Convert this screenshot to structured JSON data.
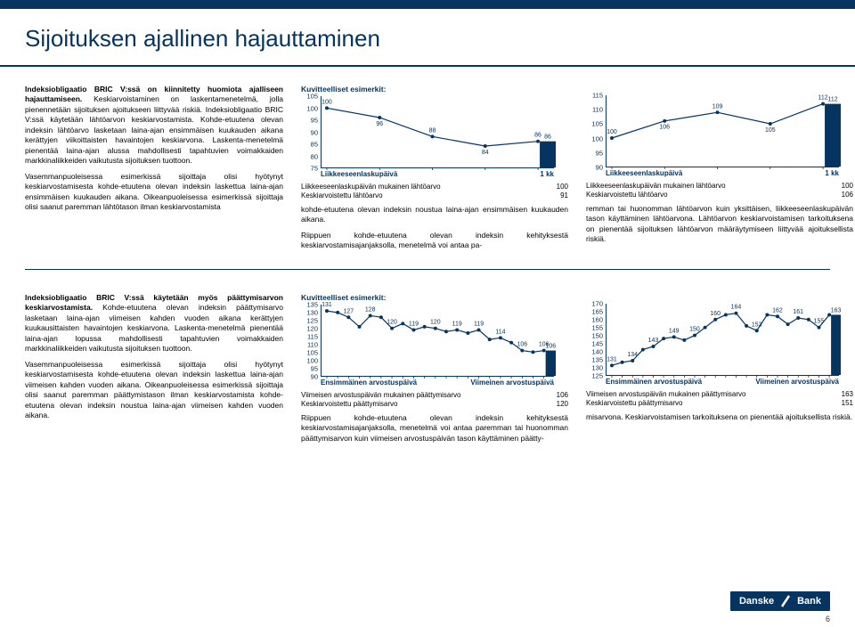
{
  "page": {
    "title": "Sijoituksen ajallinen hajauttaminen",
    "number": "6"
  },
  "logo": {
    "brand": "Danske",
    "sub": "Bank"
  },
  "text": {
    "p1a": "Indeksiobligaatio BRIC V:ssä on kiinnitetty huomiota ajalliseen hajauttamiseen.",
    "p1b": " Keskiarvoistaminen on laskentamenetelmä, jolla pienennetään sijoituksen ajoitukseen liittyvää riskiä. Indeksiobligaatio BRIC V:ssä käytetään lähtöarvon keskiarvostamista. Kohde-etuutena olevan indeksin lähtöarvo lasketaan laina-ajan ensimmäisen kuukauden aikana kerättyjen viikoittaisten havaintojen keskiarvona. Laskenta-menetelmä pienentää laina-ajan alussa mahdollisesti tapahtuvien voimakkaiden markkinaliikkeiden vaikutusta sijoituksen tuottoon.",
    "p1c": "Vasemmanpuoleisessa esimerkissä sijoittaja olisi hyötynyt keskiarvostamisesta kohde-etuutena olevan indeksin laskettua laina-ajan ensimmäisen kuukauden aikana. Oikeanpuoleisessa esimerkissä sijoittaja olisi saanut paremman lähtötason ilman keskiarvostamista",
    "p2a": "Indeksiobligaatio BRIC V:ssä käytetään myös päättymisarvon keskiarvostamista.",
    "p2b": " Kohde-etuutena olevan indeksin päättymisarvo lasketaan laina-ajan viimeisen kahden vuoden aikana kerättyjen kuukausittaisten havaintojen keskiarvona. Laskenta-menetelmä pienentää laina-ajan lopussa mahdollisesti tapahtuvien voimakkaiden markkinaliikkeiden vaikutusta sijoituksen tuottoon.",
    "p2c": "Vasemmanpuoleisessa esimerkissä sijoittaja olisi hyötynyt keskiarvostamisesta kohde-etuutena olevan indeksin laskettua laina-ajan viimeisen kahden vuoden aikana. Oikeanpuoleisessa esimerkissä sijoittaja olisi saanut paremman päättymistason ilman keskiarvostamista kohde-etuutena olevan indeksin noustua laina-ajan viimeisen kahden vuoden aikana.",
    "ex_title": "Kuvitteelliset esimerkit:",
    "n1a": "kohde-etuutena olevan indeksin noustua laina-ajan ensimmäisen kuukauden aikana.",
    "n1b": "Riippuen kohde-etuutena olevan indeksin kehityksestä keskiarvostamisajanjaksolla, menetelmä voi antaa pa-",
    "n1c": "remman tai huonomman lähtöarvon kuin yksittäisen, liikkeeseenlaskupäivän tason käyttäminen lähtöarvona. Lähtöarvon keskiarvoistamisen tarkoituksena on pienentää sijoituksen lähtöarvon määräytymiseen liittyvää ajoituksellista riskiä.",
    "n2a": "Riippuen kohde-etuutena olevan indeksin kehityksestä keskiarvostamisajanjaksolla, menetelmä voi antaa paremman tai huonomman päättymisarvon kuin viimeisen arvostuspäivän tason käyttäminen päätty-",
    "n2b": "misarvona. Keskiarvoistamisen tarkoituksena on pienentää ajoituksellista riskiä."
  },
  "charts": {
    "c1": {
      "ymin": 75,
      "ymax": 105,
      "yticks": [
        75,
        80,
        85,
        90,
        95,
        100,
        105
      ],
      "pts": [
        100,
        96,
        88,
        84,
        86
      ],
      "bar": 86,
      "xl": "Liikkeeseenlaskupäivä",
      "xr": "1 kk",
      "kv": [
        [
          "Liikkeeseenlaskupäivän mukainen lähtöarvo",
          "100"
        ],
        [
          "Keskiarvoistettu lähtöarvo",
          "91"
        ]
      ]
    },
    "c2": {
      "ymin": 90,
      "ymax": 115,
      "yticks": [
        90,
        95,
        100,
        105,
        110,
        115
      ],
      "pts": [
        100,
        106,
        109,
        105,
        112
      ],
      "bar": 112,
      "xl": "Liikkeeseenlaskupäivä",
      "xr": "1 kk",
      "kv": [
        [
          "Liikkeeseenlaskupäivän mukainen lähtöarvo",
          "100"
        ],
        [
          "Keskiarvoistettu lähtöarvo",
          "106"
        ]
      ]
    },
    "c3": {
      "ymin": 90,
      "ymax": 135,
      "yticks": [
        90,
        95,
        100,
        105,
        110,
        115,
        120,
        125,
        130,
        135
      ],
      "pts": [
        131,
        130,
        127,
        121,
        128,
        127,
        120,
        123,
        119,
        121,
        120,
        118,
        119,
        117,
        119,
        113,
        114,
        111,
        106,
        105,
        106
      ],
      "bar": 106,
      "xl": "Ensimmäinen arvostuspäivä",
      "xr": "Viimeinen arvostuspäivä",
      "kv": [
        [
          "Viimeisen arvostuspäivän mukainen päättymisarvo",
          "106"
        ],
        [
          "Keskiarvoistettu päättymisarvo",
          "120"
        ]
      ]
    },
    "c4": {
      "ymin": 125,
      "ymax": 170,
      "yticks": [
        125,
        130,
        135,
        140,
        145,
        150,
        155,
        160,
        165,
        170
      ],
      "pts": [
        131,
        133,
        134,
        141,
        143,
        148,
        149,
        147,
        150,
        155,
        160,
        163,
        164,
        156,
        153,
        163,
        162,
        157,
        161,
        160,
        155,
        163
      ],
      "bar": 163,
      "xl": "Ensimmäinen arvostuspäivä",
      "xr": "Viimeinen arvostuspäivä",
      "kv": [
        [
          "Viimeisen arvostuspäivän mukainen päättymisarvo",
          "163"
        ],
        [
          "Keskiarvoistettu päättymisarvo",
          "151"
        ]
      ]
    }
  }
}
